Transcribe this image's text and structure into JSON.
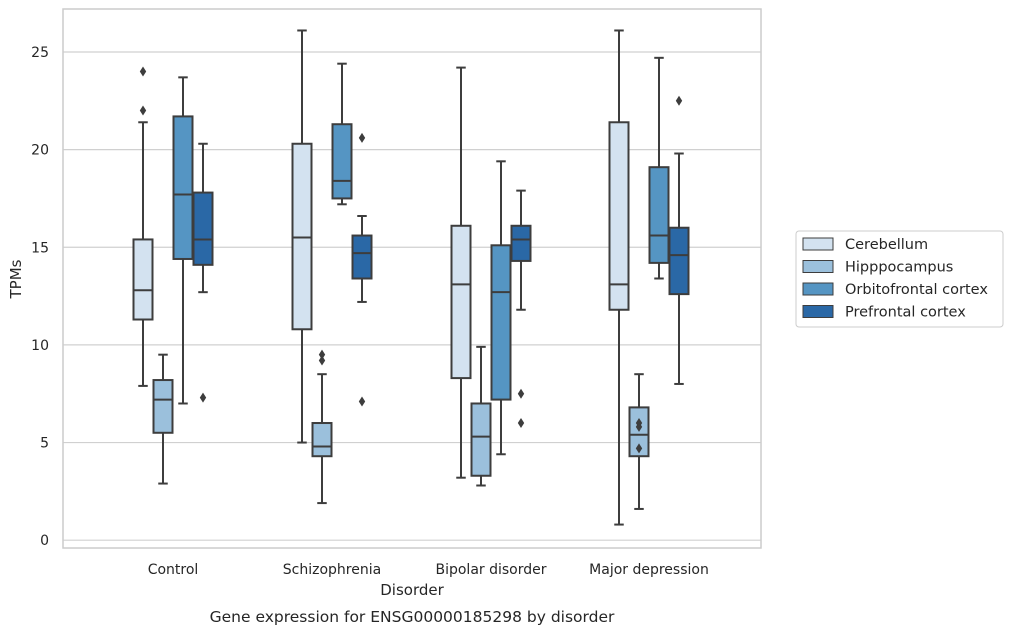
{
  "chart_data": {
    "type": "box",
    "title": "",
    "caption": "Gene expression for ENSG00000185298 by disorder",
    "xlabel": "Disorder",
    "ylabel": "TPMs",
    "ylim": [
      -0.4,
      27.2
    ],
    "yticks": [
      0,
      5,
      10,
      15,
      20,
      25
    ],
    "grid": "horizontal",
    "legend_position": "right",
    "categories": [
      "Control",
      "Schizophrenia",
      "Bipolar disorder",
      "Major depression"
    ],
    "series": [
      {
        "name": "Cerebellum",
        "color": "#d3e2f0",
        "boxes": [
          {
            "whisker_low": 7.9,
            "q1": 11.3,
            "median": 12.8,
            "q3": 15.4,
            "whisker_high": 21.4,
            "outliers": [
              22.0,
              24.0
            ]
          },
          {
            "whisker_low": 5.0,
            "q1": 10.8,
            "median": 15.5,
            "q3": 20.3,
            "whisker_high": 26.1,
            "outliers": []
          },
          {
            "whisker_low": 3.2,
            "q1": 8.3,
            "median": 13.1,
            "q3": 16.1,
            "whisker_high": 24.2,
            "outliers": []
          },
          {
            "whisker_low": 0.8,
            "q1": 11.8,
            "median": 13.1,
            "q3": 21.4,
            "whisker_high": 26.1,
            "outliers": []
          }
        ]
      },
      {
        "name": "Hipppocampus",
        "color": "#9bc0dc",
        "boxes": [
          {
            "whisker_low": 2.9,
            "q1": 5.5,
            "median": 7.2,
            "q3": 8.2,
            "whisker_high": 9.5,
            "outliers": []
          },
          {
            "whisker_low": 1.9,
            "q1": 4.3,
            "median": 4.8,
            "q3": 6.0,
            "whisker_high": 8.5,
            "outliers": [
              9.2,
              9.5
            ]
          },
          {
            "whisker_low": 2.8,
            "q1": 3.3,
            "median": 5.3,
            "q3": 7.0,
            "whisker_high": 9.9,
            "outliers": []
          },
          {
            "whisker_low": 1.6,
            "q1": 4.3,
            "median": 5.4,
            "q3": 6.8,
            "whisker_high": 8.5,
            "outliers": [
              4.7,
              5.8,
              6.0
            ]
          }
        ]
      },
      {
        "name": "Orbitofrontal cortex",
        "color": "#5595c3",
        "boxes": [
          {
            "whisker_low": 7.0,
            "q1": 14.4,
            "median": 17.7,
            "q3": 21.7,
            "whisker_high": 23.7,
            "outliers": []
          },
          {
            "whisker_low": 17.2,
            "q1": 17.5,
            "median": 18.4,
            "q3": 21.3,
            "whisker_high": 24.4,
            "outliers": []
          },
          {
            "whisker_low": 4.4,
            "q1": 7.2,
            "median": 12.7,
            "q3": 15.1,
            "whisker_high": 19.4,
            "outliers": []
          },
          {
            "whisker_low": 13.4,
            "q1": 14.2,
            "median": 15.6,
            "q3": 19.1,
            "whisker_high": 24.7,
            "outliers": []
          }
        ]
      },
      {
        "name": "Prefrontal cortex",
        "color": "#2a68a6",
        "boxes": [
          {
            "whisker_low": 12.7,
            "q1": 14.1,
            "median": 15.4,
            "q3": 17.8,
            "whisker_high": 20.3,
            "outliers": [
              7.3
            ]
          },
          {
            "whisker_low": 12.2,
            "q1": 13.4,
            "median": 14.7,
            "q3": 15.6,
            "whisker_high": 16.6,
            "outliers": [
              7.1,
              20.6
            ]
          },
          {
            "whisker_low": 11.8,
            "q1": 14.3,
            "median": 15.4,
            "q3": 16.1,
            "whisker_high": 17.9,
            "outliers": [
              6.0,
              7.5
            ]
          },
          {
            "whisker_low": 8.0,
            "q1": 12.6,
            "median": 14.6,
            "q3": 16.0,
            "whisker_high": 19.8,
            "outliers": [
              22.5
            ]
          }
        ]
      }
    ]
  }
}
